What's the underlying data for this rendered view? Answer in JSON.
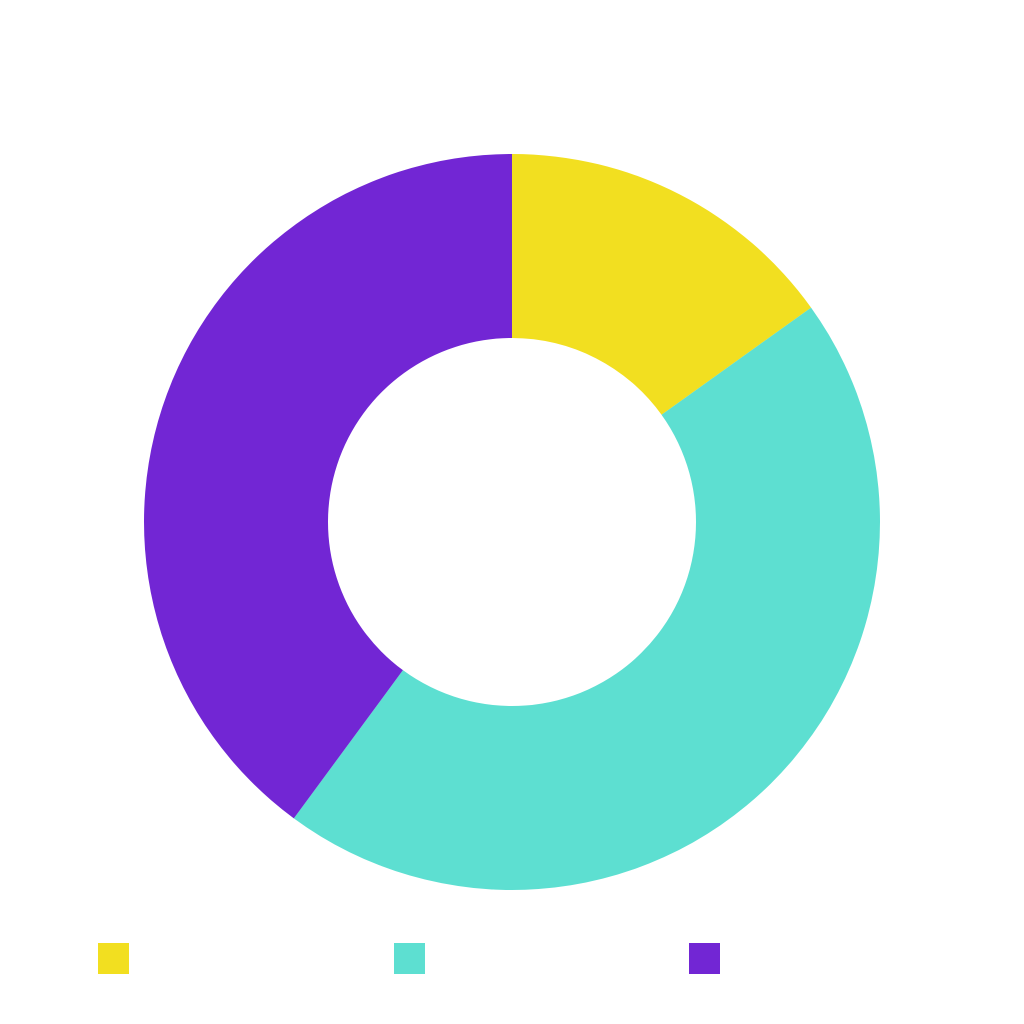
{
  "chart_data": {
    "type": "pie",
    "variant": "donut",
    "values": [
      15.1,
      45.0,
      39.9
    ],
    "colors": [
      "#f2df20",
      "#5ddfd1",
      "#7226d4"
    ],
    "legend": {
      "position": "bottom",
      "labels": [
        "",
        "",
        ""
      ]
    },
    "title": ""
  }
}
